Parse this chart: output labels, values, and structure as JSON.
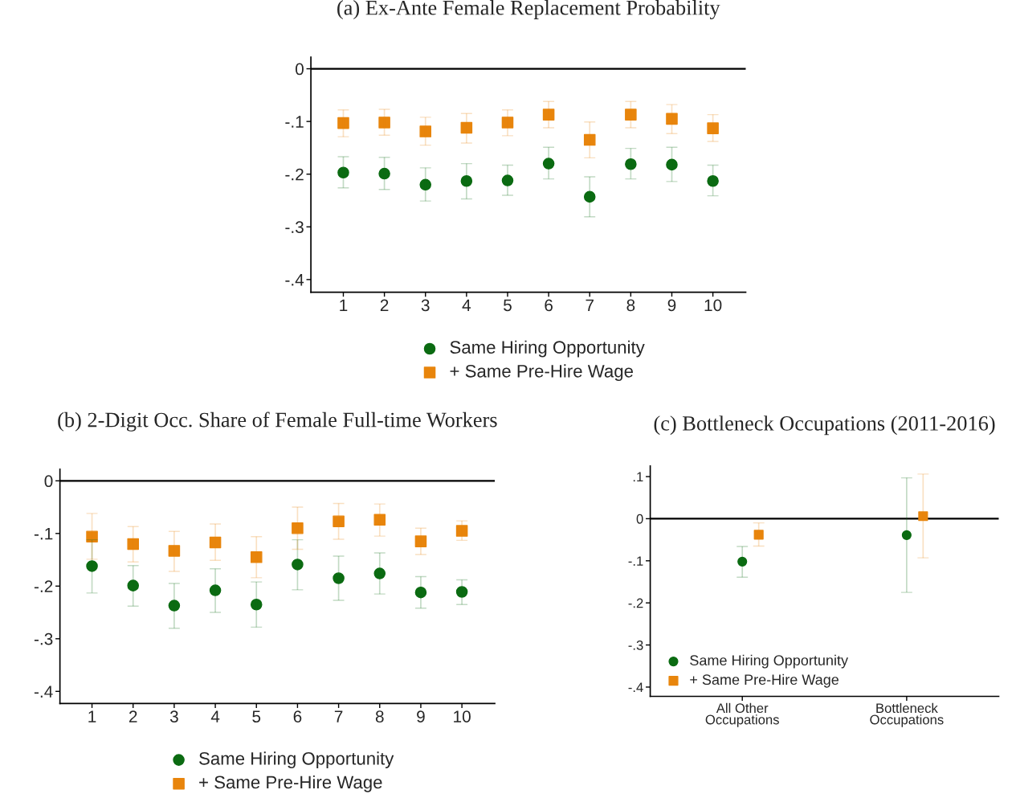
{
  "chart_data": [
    {
      "type": "scatter",
      "title": "(a) Ex-Ante Female Replacement Probability",
      "x": [
        1,
        2,
        3,
        4,
        5,
        6,
        7,
        8,
        9,
        10
      ],
      "xlim": [
        0.21,
        10.8
      ],
      "xticks": [
        1,
        2,
        3,
        4,
        5,
        6,
        7,
        8,
        9,
        10
      ],
      "ylim": [
        -0.424,
        0.022
      ],
      "yticks": [
        {
          "value": 0,
          "label": "0"
        },
        {
          "value": -0.1,
          "label": "-.1"
        },
        {
          "value": -0.2,
          "label": "-.2"
        },
        {
          "value": -0.3,
          "label": "-.3"
        },
        {
          "value": -0.4,
          "label": "-.4"
        }
      ],
      "series": [
        {
          "name": "Same Hiring Opportunity",
          "color": "#0b6b12",
          "marker": "circle",
          "values": [
            -0.197,
            -0.199,
            -0.22,
            -0.213,
            -0.212,
            -0.18,
            -0.243,
            -0.181,
            -0.182,
            -0.213
          ],
          "errors": [
            [
              -0.226,
              -0.167
            ],
            [
              -0.229,
              -0.168
            ],
            [
              -0.251,
              -0.188
            ],
            [
              -0.247,
              -0.18
            ],
            [
              -0.24,
              -0.183
            ],
            [
              -0.209,
              -0.149
            ],
            [
              -0.281,
              -0.205
            ],
            [
              -0.209,
              -0.151
            ],
            [
              -0.214,
              -0.149
            ],
            [
              -0.241,
              -0.183
            ]
          ]
        },
        {
          "name": "+ Same Pre-Hire Wage",
          "color": "#e8850c",
          "marker": "square",
          "values": [
            -0.103,
            -0.102,
            -0.119,
            -0.112,
            -0.102,
            -0.087,
            -0.135,
            -0.087,
            -0.095,
            -0.113
          ],
          "errors": [
            [
              -0.129,
              -0.078
            ],
            [
              -0.126,
              -0.077
            ],
            [
              -0.145,
              -0.092
            ],
            [
              -0.141,
              -0.085
            ],
            [
              -0.127,
              -0.078
            ],
            [
              -0.112,
              -0.062
            ],
            [
              -0.169,
              -0.101
            ],
            [
              -0.112,
              -0.062
            ],
            [
              -0.123,
              -0.068
            ],
            [
              -0.138,
              -0.087
            ]
          ]
        }
      ],
      "ref_lines": [
        {
          "axis": "y",
          "value": 0,
          "color": "#000000"
        }
      ],
      "legend": "bottom",
      "grid": false
    },
    {
      "type": "scatter",
      "title": "(b) 2-Digit Occ. Share of Female Full-time Workers",
      "x": [
        1,
        2,
        3,
        4,
        5,
        6,
        7,
        8,
        9,
        10
      ],
      "xlim": [
        0.22,
        10.8
      ],
      "xticks": [
        1,
        2,
        3,
        4,
        5,
        6,
        7,
        8,
        9,
        10
      ],
      "ylim": [
        -0.423,
        0.022
      ],
      "yticks": [
        {
          "value": 0,
          "label": "0"
        },
        {
          "value": -0.1,
          "label": "-.1"
        },
        {
          "value": -0.2,
          "label": "-.2"
        },
        {
          "value": -0.3,
          "label": "-.3"
        },
        {
          "value": -0.4,
          "label": "-.4"
        }
      ],
      "series": [
        {
          "name": "Same Hiring Opportunity",
          "color": "#0b6b12",
          "marker": "circle",
          "values": [
            -0.162,
            -0.199,
            -0.237,
            -0.208,
            -0.235,
            -0.159,
            -0.185,
            -0.176,
            -0.212,
            -0.211
          ],
          "errors": [
            [
              -0.213,
              -0.112
            ],
            [
              -0.238,
              -0.161
            ],
            [
              -0.28,
              -0.195
            ],
            [
              -0.25,
              -0.167
            ],
            [
              -0.278,
              -0.192
            ],
            [
              -0.207,
              -0.112
            ],
            [
              -0.227,
              -0.143
            ],
            [
              -0.215,
              -0.137
            ],
            [
              -0.242,
              -0.182
            ],
            [
              -0.235,
              -0.188
            ]
          ]
        },
        {
          "name": "+ Same Pre-Hire Wage",
          "color": "#e8850c",
          "marker": "square",
          "values": [
            -0.106,
            -0.12,
            -0.133,
            -0.117,
            -0.145,
            -0.09,
            -0.077,
            -0.074,
            -0.115,
            -0.095
          ],
          "errors": [
            [
              -0.149,
              -0.062
            ],
            [
              -0.154,
              -0.087
            ],
            [
              -0.172,
              -0.096
            ],
            [
              -0.151,
              -0.082
            ],
            [
              -0.184,
              -0.106
            ],
            [
              -0.13,
              -0.05
            ],
            [
              -0.111,
              -0.043
            ],
            [
              -0.105,
              -0.044
            ],
            [
              -0.14,
              -0.09
            ],
            [
              -0.113,
              -0.076
            ]
          ]
        }
      ],
      "ref_lines": [
        {
          "axis": "y",
          "value": 0,
          "color": "#000000"
        }
      ],
      "legend": "bottom",
      "grid": false
    },
    {
      "type": "scatter",
      "title": "(c) Bottleneck Occupations (2011-2016)",
      "categories": [
        "All Other\nOccupations",
        "Bottleneck\nOccupations"
      ],
      "ylim": [
        -0.422,
        0.125
      ],
      "yticks": [
        {
          "value": 0.1,
          "label": ".1"
        },
        {
          "value": 0,
          "label": "0"
        },
        {
          "value": -0.1,
          "label": "-.1"
        },
        {
          "value": -0.2,
          "label": "-.2"
        },
        {
          "value": -0.3,
          "label": "-.3"
        },
        {
          "value": -0.4,
          "label": "-.4"
        }
      ],
      "series": [
        {
          "name": "Same Hiring Opportunity",
          "color": "#0b6b12",
          "marker": "circle",
          "values": [
            -0.102,
            -0.039
          ],
          "errors": [
            [
              -0.139,
              -0.066
            ],
            [
              -0.175,
              0.097
            ]
          ]
        },
        {
          "name": "+ Same Pre-Hire Wage",
          "color": "#e8850c",
          "marker": "square",
          "values": [
            -0.038,
            0.006
          ],
          "errors": [
            [
              -0.065,
              -0.01
            ],
            [
              -0.093,
              0.106
            ]
          ]
        }
      ],
      "ref_lines": [
        {
          "axis": "y",
          "value": 0,
          "color": "#000000"
        }
      ],
      "legend": "bottom left",
      "grid": false
    }
  ]
}
